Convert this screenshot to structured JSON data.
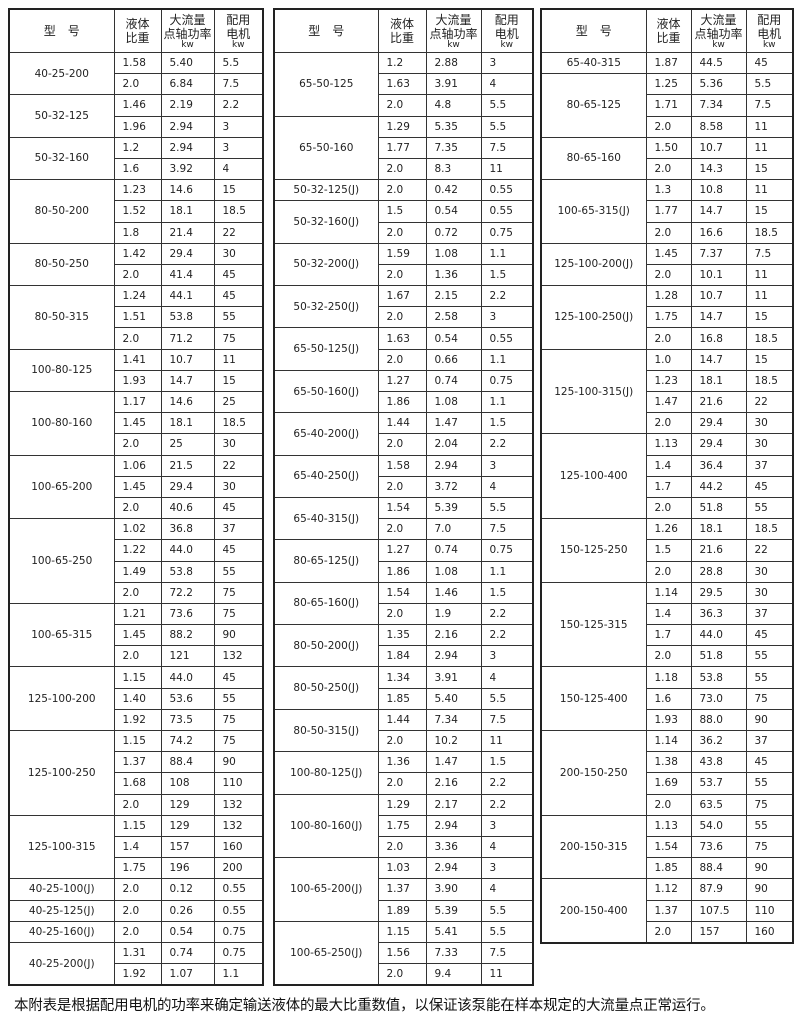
{
  "headers": {
    "model": "型　号",
    "sg_line1": "液体",
    "sg_line2": "比重",
    "power_line1": "大流量",
    "power_line2": "点轴功率",
    "power_unit": "kw",
    "motor_line1": "配用",
    "motor_line2": "电机",
    "motor_unit": "kw"
  },
  "tables": [
    [
      {
        "model": "40-25-200",
        "rows": [
          [
            "1.58",
            "5.40",
            "5.5"
          ],
          [
            "2.0",
            "6.84",
            "7.5"
          ]
        ]
      },
      {
        "model": "50-32-125",
        "rows": [
          [
            "1.46",
            "2.19",
            "2.2"
          ],
          [
            "1.96",
            "2.94",
            "3"
          ]
        ]
      },
      {
        "model": "50-32-160",
        "rows": [
          [
            "1.2",
            "2.94",
            "3"
          ],
          [
            "1.6",
            "3.92",
            "4"
          ]
        ]
      },
      {
        "model": "80-50-200",
        "rows": [
          [
            "1.23",
            "14.6",
            "15"
          ],
          [
            "1.52",
            "18.1",
            "18.5"
          ],
          [
            "1.8",
            "21.4",
            "22"
          ]
        ]
      },
      {
        "model": "80-50-250",
        "rows": [
          [
            "1.42",
            "29.4",
            "30"
          ],
          [
            "2.0",
            "41.4",
            "45"
          ]
        ]
      },
      {
        "model": "80-50-315",
        "rows": [
          [
            "1.24",
            "44.1",
            "45"
          ],
          [
            "1.51",
            "53.8",
            "55"
          ],
          [
            "2.0",
            "71.2",
            "75"
          ]
        ]
      },
      {
        "model": "100-80-125",
        "rows": [
          [
            "1.41",
            "10.7",
            "11"
          ],
          [
            "1.93",
            "14.7",
            "15"
          ]
        ]
      },
      {
        "model": "100-80-160",
        "rows": [
          [
            "1.17",
            "14.6",
            "25"
          ],
          [
            "1.45",
            "18.1",
            "18.5"
          ],
          [
            "2.0",
            "25",
            "30"
          ]
        ]
      },
      {
        "model": "100-65-200",
        "rows": [
          [
            "1.06",
            "21.5",
            "22"
          ],
          [
            "1.45",
            "29.4",
            "30"
          ],
          [
            "2.0",
            "40.6",
            "45"
          ]
        ]
      },
      {
        "model": "100-65-250",
        "rows": [
          [
            "1.02",
            "36.8",
            "37"
          ],
          [
            "1.22",
            "44.0",
            "45"
          ],
          [
            "1.49",
            "53.8",
            "55"
          ],
          [
            "2.0",
            "72.2",
            "75"
          ]
        ]
      },
      {
        "model": "100-65-315",
        "rows": [
          [
            "1.21",
            "73.6",
            "75"
          ],
          [
            "1.45",
            "88.2",
            "90"
          ],
          [
            "2.0",
            "121",
            "132"
          ]
        ]
      },
      {
        "model": "125-100-200",
        "rows": [
          [
            "1.15",
            "44.0",
            "45"
          ],
          [
            "1.40",
            "53.6",
            "55"
          ],
          [
            "1.92",
            "73.5",
            "75"
          ]
        ]
      },
      {
        "model": "125-100-250",
        "rows": [
          [
            "1.15",
            "74.2",
            "75"
          ],
          [
            "1.37",
            "88.4",
            "90"
          ],
          [
            "1.68",
            "108",
            "110"
          ],
          [
            "2.0",
            "129",
            "132"
          ]
        ]
      },
      {
        "model": "125-100-315",
        "rows": [
          [
            "1.15",
            "129",
            "132"
          ],
          [
            "1.4",
            "157",
            "160"
          ],
          [
            "1.75",
            "196",
            "200"
          ]
        ]
      },
      {
        "model": "40-25-100(J)",
        "rows": [
          [
            "2.0",
            "0.12",
            "0.55"
          ]
        ]
      },
      {
        "model": "40-25-125(J)",
        "rows": [
          [
            "2.0",
            "0.26",
            "0.55"
          ]
        ]
      },
      {
        "model": "40-25-160(J)",
        "rows": [
          [
            "2.0",
            "0.54",
            "0.75"
          ]
        ]
      },
      {
        "model": "40-25-200(J)",
        "rows": [
          [
            "1.31",
            "0.74",
            "0.75"
          ],
          [
            "1.92",
            "1.07",
            "1.1"
          ]
        ]
      }
    ],
    [
      {
        "model": "65-50-125",
        "rows": [
          [
            "1.2",
            "2.88",
            "3"
          ],
          [
            "1.63",
            "3.91",
            "4"
          ],
          [
            "2.0",
            "4.8",
            "5.5"
          ]
        ]
      },
      {
        "model": "65-50-160",
        "rows": [
          [
            "1.29",
            "5.35",
            "5.5"
          ],
          [
            "1.77",
            "7.35",
            "7.5"
          ],
          [
            "2.0",
            "8.3",
            "11"
          ]
        ]
      },
      {
        "model": "50-32-125(J)",
        "rows": [
          [
            "2.0",
            "0.42",
            "0.55"
          ]
        ]
      },
      {
        "model": "50-32-160(J)",
        "rows": [
          [
            "1.5",
            "0.54",
            "0.55"
          ],
          [
            "2.0",
            "0.72",
            "0.75"
          ]
        ]
      },
      {
        "model": "50-32-200(J)",
        "rows": [
          [
            "1.59",
            "1.08",
            "1.1"
          ],
          [
            "2.0",
            "1.36",
            "1.5"
          ]
        ]
      },
      {
        "model": "50-32-250(J)",
        "rows": [
          [
            "1.67",
            "2.15",
            "2.2"
          ],
          [
            "2.0",
            "2.58",
            "3"
          ]
        ]
      },
      {
        "model": "65-50-125(J)",
        "rows": [
          [
            "1.63",
            "0.54",
            "0.55"
          ],
          [
            "2.0",
            "0.66",
            "1.1"
          ]
        ]
      },
      {
        "model": "65-50-160(J)",
        "rows": [
          [
            "1.27",
            "0.74",
            "0.75"
          ],
          [
            "1.86",
            "1.08",
            "1.1"
          ]
        ]
      },
      {
        "model": "65-40-200(J)",
        "rows": [
          [
            "1.44",
            "1.47",
            "1.5"
          ],
          [
            "2.0",
            "2.04",
            "2.2"
          ]
        ]
      },
      {
        "model": "65-40-250(J)",
        "rows": [
          [
            "1.58",
            "2.94",
            "3"
          ],
          [
            "2.0",
            "3.72",
            "4"
          ]
        ]
      },
      {
        "model": "65-40-315(J)",
        "rows": [
          [
            "1.54",
            "5.39",
            "5.5"
          ],
          [
            "2.0",
            "7.0",
            "7.5"
          ]
        ]
      },
      {
        "model": "80-65-125(J)",
        "rows": [
          [
            "1.27",
            "0.74",
            "0.75"
          ],
          [
            "1.86",
            "1.08",
            "1.1"
          ]
        ]
      },
      {
        "model": "80-65-160(J)",
        "rows": [
          [
            "1.54",
            "1.46",
            "1.5"
          ],
          [
            "2.0",
            "1.9",
            "2.2"
          ]
        ]
      },
      {
        "model": "80-50-200(J)",
        "rows": [
          [
            "1.35",
            "2.16",
            "2.2"
          ],
          [
            "1.84",
            "2.94",
            "3"
          ]
        ]
      },
      {
        "model": "80-50-250(J)",
        "rows": [
          [
            "1.34",
            "3.91",
            "4"
          ],
          [
            "1.85",
            "5.40",
            "5.5"
          ]
        ]
      },
      {
        "model": "80-50-315(J)",
        "rows": [
          [
            "1.44",
            "7.34",
            "7.5"
          ],
          [
            "2.0",
            "10.2",
            "11"
          ]
        ]
      },
      {
        "model": "100-80-125(J)",
        "rows": [
          [
            "1.36",
            "1.47",
            "1.5"
          ],
          [
            "2.0",
            "2.16",
            "2.2"
          ]
        ]
      },
      {
        "model": "100-80-160(J)",
        "rows": [
          [
            "1.29",
            "2.17",
            "2.2"
          ],
          [
            "1.75",
            "2.94",
            "3"
          ],
          [
            "2.0",
            "3.36",
            "4"
          ]
        ]
      },
      {
        "model": "100-65-200(J)",
        "rows": [
          [
            "1.03",
            "2.94",
            "3"
          ],
          [
            "1.37",
            "3.90",
            "4"
          ],
          [
            "1.89",
            "5.39",
            "5.5"
          ]
        ]
      },
      {
        "model": "100-65-250(J)",
        "rows": [
          [
            "1.15",
            "5.41",
            "5.5"
          ],
          [
            "1.56",
            "7.33",
            "7.5"
          ],
          [
            "2.0",
            "9.4",
            "11"
          ]
        ]
      }
    ],
    [
      {
        "model": "65-40-315",
        "rows": [
          [
            "1.87",
            "44.5",
            "45"
          ]
        ]
      },
      {
        "model": "80-65-125",
        "rows": [
          [
            "1.25",
            "5.36",
            "5.5"
          ],
          [
            "1.71",
            "7.34",
            "7.5"
          ],
          [
            "2.0",
            "8.58",
            "11"
          ]
        ]
      },
      {
        "model": "80-65-160",
        "rows": [
          [
            "1.50",
            "10.7",
            "11"
          ],
          [
            "2.0",
            "14.3",
            "15"
          ]
        ]
      },
      {
        "model": "100-65-315(J)",
        "rows": [
          [
            "1.3",
            "10.8",
            "11"
          ],
          [
            "1.77",
            "14.7",
            "15"
          ],
          [
            "2.0",
            "16.6",
            "18.5"
          ]
        ]
      },
      {
        "model": "125-100-200(J)",
        "rows": [
          [
            "1.45",
            "7.37",
            "7.5"
          ],
          [
            "2.0",
            "10.1",
            "11"
          ]
        ]
      },
      {
        "model": "125-100-250(J)",
        "rows": [
          [
            "1.28",
            "10.7",
            "11"
          ],
          [
            "1.75",
            "14.7",
            "15"
          ],
          [
            "2.0",
            "16.8",
            "18.5"
          ]
        ]
      },
      {
        "model": "125-100-315(J)",
        "rows": [
          [
            "1.0",
            "14.7",
            "15"
          ],
          [
            "1.23",
            "18.1",
            "18.5"
          ],
          [
            "1.47",
            "21.6",
            "22"
          ],
          [
            "2.0",
            "29.4",
            "30"
          ]
        ]
      },
      {
        "model": "125-100-400",
        "rows": [
          [
            "1.13",
            "29.4",
            "30"
          ],
          [
            "1.4",
            "36.4",
            "37"
          ],
          [
            "1.7",
            "44.2",
            "45"
          ],
          [
            "2.0",
            "51.8",
            "55"
          ]
        ]
      },
      {
        "model": "150-125-250",
        "rows": [
          [
            "1.26",
            "18.1",
            "18.5"
          ],
          [
            "1.5",
            "21.6",
            "22"
          ],
          [
            "2.0",
            "28.8",
            "30"
          ]
        ]
      },
      {
        "model": "150-125-315",
        "rows": [
          [
            "1.14",
            "29.5",
            "30"
          ],
          [
            "1.4",
            "36.3",
            "37"
          ],
          [
            "1.7",
            "44.0",
            "45"
          ],
          [
            "2.0",
            "51.8",
            "55"
          ]
        ]
      },
      {
        "model": "150-125-400",
        "rows": [
          [
            "1.18",
            "53.8",
            "55"
          ],
          [
            "1.6",
            "73.0",
            "75"
          ],
          [
            "1.93",
            "88.0",
            "90"
          ]
        ]
      },
      {
        "model": "200-150-250",
        "rows": [
          [
            "1.14",
            "36.2",
            "37"
          ],
          [
            "1.38",
            "43.8",
            "45"
          ],
          [
            "1.69",
            "53.7",
            "55"
          ],
          [
            "2.0",
            "63.5",
            "75"
          ]
        ]
      },
      {
        "model": "200-150-315",
        "rows": [
          [
            "1.13",
            "54.0",
            "55"
          ],
          [
            "1.54",
            "73.6",
            "75"
          ],
          [
            "1.85",
            "88.4",
            "90"
          ]
        ]
      },
      {
        "model": "200-150-400",
        "rows": [
          [
            "1.12",
            "87.9",
            "90"
          ],
          [
            "1.37",
            "107.5",
            "110"
          ],
          [
            "2.0",
            "157",
            "160"
          ]
        ]
      }
    ]
  ],
  "footnote": "本附表是根据配用电机的功率来确定输送液体的最大比重数值，以保证该泵能在样本规定的大流量点正常运行。"
}
